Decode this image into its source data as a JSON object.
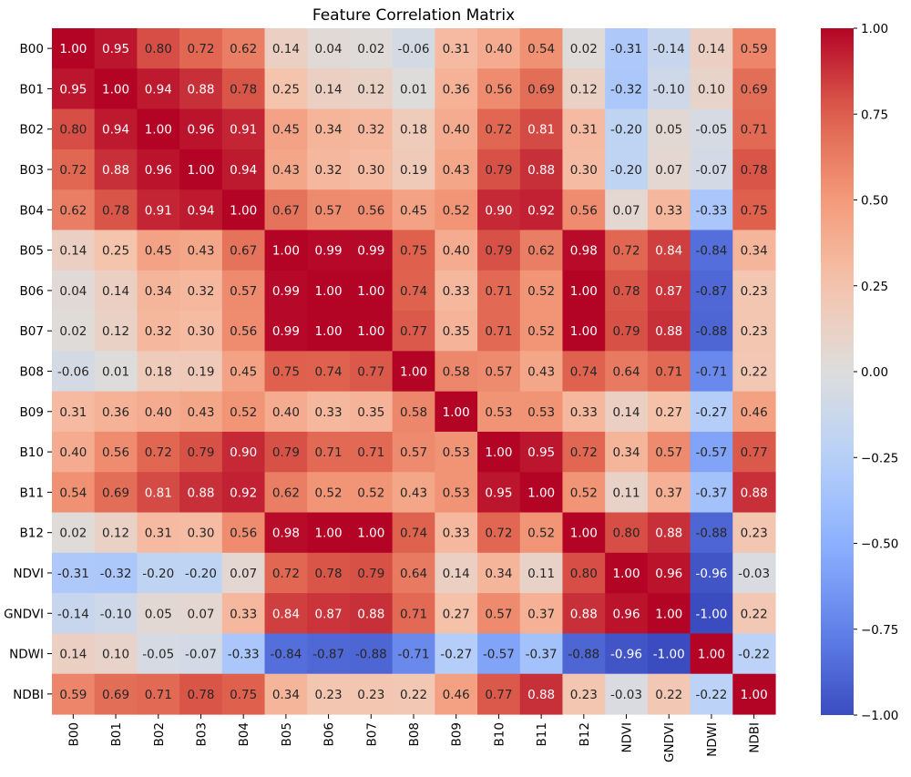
{
  "chart_data": {
    "type": "heatmap",
    "title": "Feature Correlation Matrix",
    "xlabel": "",
    "ylabel": "",
    "colormap": "coolwarm",
    "value_range": [
      -1.0,
      1.0
    ],
    "annotation_format": "0.00",
    "row_labels": [
      "B00",
      "B01",
      "B02",
      "B03",
      "B04",
      "B05",
      "B06",
      "B07",
      "B08",
      "B09",
      "B10",
      "B11",
      "B12",
      "NDVI",
      "GNDVI",
      "NDWI",
      "NDBI"
    ],
    "col_labels": [
      "B00",
      "B01",
      "B02",
      "B03",
      "B04",
      "B05",
      "B06",
      "B07",
      "B08",
      "B09",
      "B10",
      "B11",
      "B12",
      "NDVI",
      "GNDVI",
      "NDWI",
      "NDBI"
    ],
    "values": [
      [
        1.0,
        0.95,
        0.8,
        0.72,
        0.62,
        0.14,
        0.04,
        0.02,
        -0.06,
        0.31,
        0.4,
        0.54,
        0.02,
        -0.31,
        -0.14,
        0.14,
        0.59
      ],
      [
        0.95,
        1.0,
        0.94,
        0.88,
        0.78,
        0.25,
        0.14,
        0.12,
        0.01,
        0.36,
        0.56,
        0.69,
        0.12,
        -0.32,
        -0.1,
        0.1,
        0.69
      ],
      [
        0.8,
        0.94,
        1.0,
        0.96,
        0.91,
        0.45,
        0.34,
        0.32,
        0.18,
        0.4,
        0.72,
        0.81,
        0.31,
        -0.2,
        0.05,
        -0.05,
        0.71
      ],
      [
        0.72,
        0.88,
        0.96,
        1.0,
        0.94,
        0.43,
        0.32,
        0.3,
        0.19,
        0.43,
        0.79,
        0.88,
        0.3,
        -0.2,
        0.07,
        -0.07,
        0.78
      ],
      [
        0.62,
        0.78,
        0.91,
        0.94,
        1.0,
        0.67,
        0.57,
        0.56,
        0.45,
        0.52,
        0.9,
        0.92,
        0.56,
        0.07,
        0.33,
        -0.33,
        0.75
      ],
      [
        0.14,
        0.25,
        0.45,
        0.43,
        0.67,
        1.0,
        0.99,
        0.99,
        0.75,
        0.4,
        0.79,
        0.62,
        0.98,
        0.72,
        0.84,
        -0.84,
        0.34
      ],
      [
        0.04,
        0.14,
        0.34,
        0.32,
        0.57,
        0.99,
        1.0,
        1.0,
        0.74,
        0.33,
        0.71,
        0.52,
        1.0,
        0.78,
        0.87,
        -0.87,
        0.23
      ],
      [
        0.02,
        0.12,
        0.32,
        0.3,
        0.56,
        0.99,
        1.0,
        1.0,
        0.77,
        0.35,
        0.71,
        0.52,
        1.0,
        0.79,
        0.88,
        -0.88,
        0.23
      ],
      [
        -0.06,
        0.01,
        0.18,
        0.19,
        0.45,
        0.75,
        0.74,
        0.77,
        1.0,
        0.58,
        0.57,
        0.43,
        0.74,
        0.64,
        0.71,
        -0.71,
        0.22
      ],
      [
        0.31,
        0.36,
        0.4,
        0.43,
        0.52,
        0.4,
        0.33,
        0.35,
        0.58,
        1.0,
        0.53,
        0.53,
        0.33,
        0.14,
        0.27,
        -0.27,
        0.46
      ],
      [
        0.4,
        0.56,
        0.72,
        0.79,
        0.9,
        0.79,
        0.71,
        0.71,
        0.57,
        0.53,
        1.0,
        0.95,
        0.72,
        0.34,
        0.57,
        -0.57,
        0.77
      ],
      [
        0.54,
        0.69,
        0.81,
        0.88,
        0.92,
        0.62,
        0.52,
        0.52,
        0.43,
        0.53,
        0.95,
        1.0,
        0.52,
        0.11,
        0.37,
        -0.37,
        0.88
      ],
      [
        0.02,
        0.12,
        0.31,
        0.3,
        0.56,
        0.98,
        1.0,
        1.0,
        0.74,
        0.33,
        0.72,
        0.52,
        1.0,
        0.8,
        0.88,
        -0.88,
        0.23
      ],
      [
        -0.31,
        -0.32,
        -0.2,
        -0.2,
        0.07,
        0.72,
        0.78,
        0.79,
        0.64,
        0.14,
        0.34,
        0.11,
        0.8,
        1.0,
        0.96,
        -0.96,
        -0.03
      ],
      [
        -0.14,
        -0.1,
        0.05,
        0.07,
        0.33,
        0.84,
        0.87,
        0.88,
        0.71,
        0.27,
        0.57,
        0.37,
        0.88,
        0.96,
        1.0,
        -1.0,
        0.22
      ],
      [
        0.14,
        0.1,
        -0.05,
        -0.07,
        -0.33,
        -0.84,
        -0.87,
        -0.88,
        -0.71,
        -0.27,
        -0.57,
        -0.37,
        -0.88,
        -0.96,
        -1.0,
        1.0,
        -0.22
      ],
      [
        0.59,
        0.69,
        0.71,
        0.78,
        0.75,
        0.34,
        0.23,
        0.23,
        0.22,
        0.46,
        0.77,
        0.88,
        0.23,
        -0.03,
        0.22,
        -0.22,
        1.0
      ]
    ],
    "colorbar": {
      "ticks": [
        1.0,
        0.75,
        0.5,
        0.25,
        0.0,
        -0.25,
        -0.5,
        -0.75,
        -1.0
      ],
      "tick_labels": [
        "1.00",
        "0.75",
        "0.50",
        "0.25",
        "0.00",
        "−0.25",
        "−0.50",
        "−0.75",
        "−1.00"
      ],
      "placement": "right"
    },
    "grid": false
  }
}
